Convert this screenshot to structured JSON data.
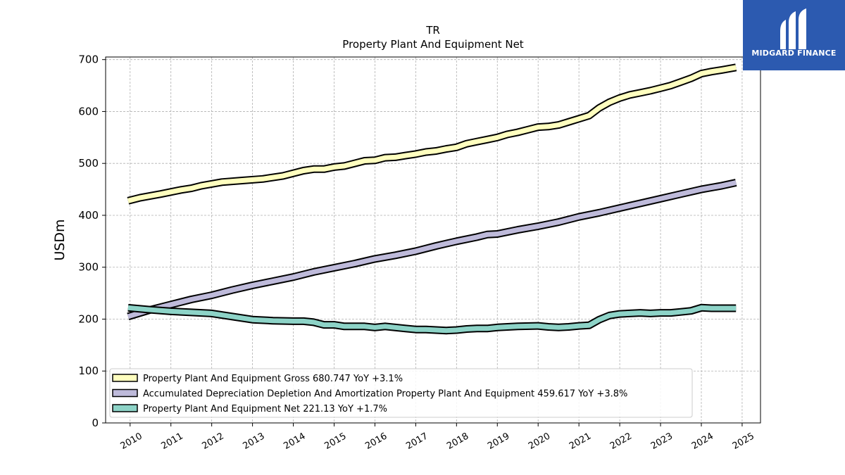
{
  "brand": {
    "name": "MIDGARD FINANCE",
    "bg_color": "#2c5ab0"
  },
  "chart_data": {
    "type": "line",
    "title": "TR",
    "subtitle": "Property Plant And Equipment Net",
    "xlabel": "",
    "ylabel": "USDm",
    "xlim": [
      2009.4,
      2025.45
    ],
    "ylim": [
      0,
      705
    ],
    "yticks": [
      0,
      100,
      200,
      300,
      400,
      500,
      600,
      700
    ],
    "xticks": [
      2010,
      2011,
      2012,
      2013,
      2014,
      2015,
      2016,
      2017,
      2018,
      2019,
      2020,
      2021,
      2022,
      2023,
      2024,
      2025
    ],
    "grid": true,
    "legend_position": "lower-left",
    "series": [
      {
        "name": "Property Plant And Equipment Gross",
        "legend_label": "Property Plant And Equipment Gross  680.747 YoY +3.1%",
        "color": "#ffffbf",
        "points": [
          [
            2009.95,
            428
          ],
          [
            2010.25,
            434
          ],
          [
            2010.75,
            441
          ],
          [
            2011.25,
            449
          ],
          [
            2011.5,
            452
          ],
          [
            2011.75,
            457
          ],
          [
            2012.25,
            464
          ],
          [
            2012.75,
            467
          ],
          [
            2013.25,
            470
          ],
          [
            2013.75,
            476
          ],
          [
            2014.25,
            486
          ],
          [
            2014.5,
            489
          ],
          [
            2014.75,
            489
          ],
          [
            2015.0,
            493
          ],
          [
            2015.25,
            495
          ],
          [
            2015.75,
            505
          ],
          [
            2016.0,
            506
          ],
          [
            2016.25,
            511
          ],
          [
            2016.5,
            512
          ],
          [
            2016.75,
            515
          ],
          [
            2017.0,
            518
          ],
          [
            2017.25,
            522
          ],
          [
            2017.5,
            524
          ],
          [
            2017.75,
            528
          ],
          [
            2018.0,
            531
          ],
          [
            2018.25,
            538
          ],
          [
            2018.5,
            542
          ],
          [
            2018.75,
            546
          ],
          [
            2019.0,
            550
          ],
          [
            2019.25,
            556
          ],
          [
            2019.5,
            560
          ],
          [
            2019.75,
            565
          ],
          [
            2020.0,
            570
          ],
          [
            2020.25,
            571
          ],
          [
            2020.5,
            574
          ],
          [
            2020.75,
            580
          ],
          [
            2021.0,
            586
          ],
          [
            2021.25,
            592
          ],
          [
            2021.5,
            607
          ],
          [
            2021.75,
            618
          ],
          [
            2022.0,
            626
          ],
          [
            2022.25,
            632
          ],
          [
            2022.5,
            636
          ],
          [
            2022.75,
            640
          ],
          [
            2023.0,
            645
          ],
          [
            2023.25,
            650
          ],
          [
            2023.5,
            657
          ],
          [
            2023.75,
            664
          ],
          [
            2024.0,
            673
          ],
          [
            2024.25,
            677
          ],
          [
            2024.5,
            680
          ],
          [
            2024.85,
            685
          ]
        ]
      },
      {
        "name": "Accumulated Depreciation Depletion And Amortization Property Plant And Equipment",
        "legend_label": "Accumulated Depreciation Depletion And Amortization Property Plant And Equipment  459.617 YoY +3.8%",
        "color": "#bebada",
        "points": [
          [
            2009.95,
            205
          ],
          [
            2010.5,
            218
          ],
          [
            2011.0,
            228
          ],
          [
            2011.5,
            238
          ],
          [
            2012.0,
            246
          ],
          [
            2012.5,
            256
          ],
          [
            2013.0,
            265
          ],
          [
            2013.5,
            273
          ],
          [
            2014.0,
            281
          ],
          [
            2014.5,
            291
          ],
          [
            2015.0,
            299
          ],
          [
            2015.5,
            307
          ],
          [
            2016.0,
            316
          ],
          [
            2016.5,
            323
          ],
          [
            2017.0,
            331
          ],
          [
            2017.5,
            341
          ],
          [
            2018.0,
            350
          ],
          [
            2018.5,
            358
          ],
          [
            2018.75,
            363
          ],
          [
            2019.0,
            364
          ],
          [
            2019.5,
            372
          ],
          [
            2020.0,
            379
          ],
          [
            2020.5,
            387
          ],
          [
            2021.0,
            397
          ],
          [
            2021.5,
            405
          ],
          [
            2022.0,
            414
          ],
          [
            2022.5,
            423
          ],
          [
            2023.0,
            432
          ],
          [
            2023.5,
            441
          ],
          [
            2024.0,
            450
          ],
          [
            2024.5,
            457
          ],
          [
            2024.85,
            463
          ]
        ]
      },
      {
        "name": "Property Plant And Equipment Net",
        "legend_label": "Property Plant And Equipment Net  221.13 YoY +1.7%",
        "color": "#8dd3c7",
        "points": [
          [
            2009.95,
            222
          ],
          [
            2010.5,
            218
          ],
          [
            2011.0,
            215
          ],
          [
            2011.5,
            213
          ],
          [
            2012.0,
            211
          ],
          [
            2012.5,
            205
          ],
          [
            2013.0,
            199
          ],
          [
            2013.5,
            197
          ],
          [
            2014.0,
            196
          ],
          [
            2014.25,
            196
          ],
          [
            2014.5,
            194
          ],
          [
            2014.75,
            189
          ],
          [
            2015.0,
            189
          ],
          [
            2015.25,
            186
          ],
          [
            2015.75,
            186
          ],
          [
            2016.0,
            184
          ],
          [
            2016.25,
            186
          ],
          [
            2016.5,
            184
          ],
          [
            2016.75,
            182
          ],
          [
            2017.0,
            180
          ],
          [
            2017.25,
            180
          ],
          [
            2017.5,
            179
          ],
          [
            2017.75,
            178
          ],
          [
            2018.0,
            179
          ],
          [
            2018.25,
            181
          ],
          [
            2018.5,
            182
          ],
          [
            2018.75,
            182
          ],
          [
            2019.0,
            184
          ],
          [
            2019.5,
            186
          ],
          [
            2020.0,
            187
          ],
          [
            2020.25,
            185
          ],
          [
            2020.5,
            184
          ],
          [
            2020.75,
            185
          ],
          [
            2021.0,
            187
          ],
          [
            2021.25,
            188
          ],
          [
            2021.5,
            199
          ],
          [
            2021.75,
            207
          ],
          [
            2022.0,
            210
          ],
          [
            2022.5,
            212
          ],
          [
            2022.75,
            211
          ],
          [
            2023.0,
            212
          ],
          [
            2023.25,
            212
          ],
          [
            2023.5,
            214
          ],
          [
            2023.75,
            216
          ],
          [
            2024.0,
            222
          ],
          [
            2024.25,
            221
          ],
          [
            2024.5,
            221
          ],
          [
            2024.85,
            221
          ]
        ]
      }
    ]
  }
}
